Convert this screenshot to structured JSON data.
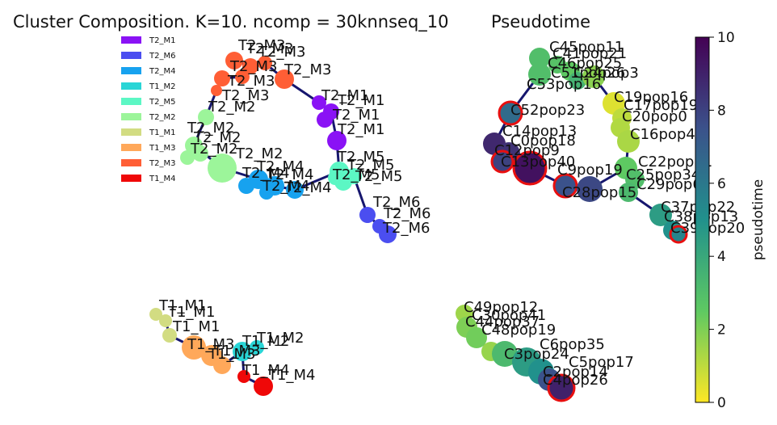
{
  "title_left": "Cluster Composition. K=10. ncomp = 30knnseq_10",
  "title_right": "Pseudotime",
  "legend": [
    {
      "label": "T2_M1",
      "color": "#8a12f5"
    },
    {
      "label": "T2_M6",
      "color": "#4b4ef0"
    },
    {
      "label": "T2_M4",
      "color": "#17a2ef"
    },
    {
      "label": "T1_M2",
      "color": "#29d5d6"
    },
    {
      "label": "T2_M5",
      "color": "#5cf7c4"
    },
    {
      "label": "T2_M2",
      "color": "#9cf59a"
    },
    {
      "label": "T1_M1",
      "color": "#d2dc82"
    },
    {
      "label": "T1_M3",
      "color": "#ffa85a"
    },
    {
      "label": "T2_M3",
      "color": "#ff5e35"
    },
    {
      "label": "T1_M4",
      "color": "#ef0808"
    }
  ],
  "colorbar": {
    "label": "pseudotime",
    "ticks": [
      "0",
      "2",
      "4",
      "6",
      "8",
      "10"
    ],
    "min": 0,
    "max": 10
  },
  "chart_data": [
    {
      "type": "scatter",
      "title": "Cluster Composition. K=10. ncomp = 30knnseq_10",
      "description_of_points": "pie-chart nodes; each node label = dominant group",
      "points": [
        {
          "label": "T2_M3",
          "group": "T2_M3"
        },
        {
          "label": "T2_M3",
          "group": "T2_M3"
        },
        {
          "label": "T2_M3",
          "group": "T2_M3"
        },
        {
          "label": "T2_M3",
          "group": "T2_M3"
        },
        {
          "label": "T2_M3",
          "group": "T2_M3"
        },
        {
          "label": "T2_M3",
          "group": "T2_M3"
        },
        {
          "label": "T2_M3",
          "group": "T2_M3"
        },
        {
          "label": "T2_M2",
          "group": "T2_M2"
        },
        {
          "label": "T2_M2",
          "group": "T2_M2"
        },
        {
          "label": "T2_M2",
          "group": "T2_M2"
        },
        {
          "label": "T2_M2",
          "group": "T2_M2"
        },
        {
          "label": "T2_M2",
          "group": "T2_M2"
        },
        {
          "label": "T2_M4",
          "group": "T2_M4"
        },
        {
          "label": "T2_M4",
          "group": "T2_M4"
        },
        {
          "label": "T2_M4",
          "group": "T2_M4"
        },
        {
          "label": "T2_M4",
          "group": "T2_M4"
        },
        {
          "label": "T2_M4",
          "group": "T2_M4"
        },
        {
          "label": "T2_M1",
          "group": "T2_M1"
        },
        {
          "label": "T2_M1",
          "group": "T2_M1"
        },
        {
          "label": "T2_M1",
          "group": "T2_M1"
        },
        {
          "label": "T2_M1",
          "group": "T2_M1"
        },
        {
          "label": "T2_M5",
          "group": "T2_M5"
        },
        {
          "label": "T2_M5",
          "group": "T2_M5"
        },
        {
          "label": "T2_M5",
          "group": "T2_M5"
        },
        {
          "label": "T2_M5",
          "group": "T2_M5"
        },
        {
          "label": "T2_M6",
          "group": "T2_M6"
        },
        {
          "label": "T2_M6",
          "group": "T2_M6"
        },
        {
          "label": "T2_M6",
          "group": "T2_M6"
        },
        {
          "label": "T1_M1",
          "group": "T1_M1"
        },
        {
          "label": "T1_M1",
          "group": "T1_M1"
        },
        {
          "label": "T1_M1",
          "group": "T1_M1"
        },
        {
          "label": "T1_M3",
          "group": "T1_M3"
        },
        {
          "label": "T1_M3",
          "group": "T1_M3"
        },
        {
          "label": "T1_M3",
          "group": "T1_M3"
        },
        {
          "label": "T1_M2",
          "group": "T1_M2"
        },
        {
          "label": "T1_M2",
          "group": "T1_M2"
        },
        {
          "label": "T1_M4",
          "group": "T1_M4"
        },
        {
          "label": "T1_M4",
          "group": "T1_M4"
        }
      ]
    },
    {
      "type": "scatter",
      "title": "Pseudotime",
      "colorbar_label": "pseudotime",
      "clim": [
        0,
        10
      ],
      "points": [
        {
          "label": "C45pop11",
          "pseudotime": 3.0
        },
        {
          "label": "C41pop21",
          "pseudotime": 2.8
        },
        {
          "label": "C46pop25",
          "pseudotime": 2.5
        },
        {
          "label": "C51pop26",
          "pseudotime": 3.0
        },
        {
          "label": "C53pop16",
          "pseudotime": 3.5
        },
        {
          "label": "C24pop3",
          "pseudotime": 1.8
        },
        {
          "label": "C52pop23",
          "pseudotime": 6.5
        },
        {
          "label": "C19pop16",
          "pseudotime": 0.5
        },
        {
          "label": "C17pop19",
          "pseudotime": 1.0
        },
        {
          "label": "C20pop0",
          "pseudotime": 1.2
        },
        {
          "label": "C16pop4",
          "pseudotime": 1.3
        },
        {
          "label": "C14pop13",
          "pseudotime": 8.8
        },
        {
          "label": "C0pop18",
          "pseudotime": 8.5
        },
        {
          "label": "C12pop9",
          "pseudotime": 8.0
        },
        {
          "label": "C13pop40",
          "pseudotime": 9.5
        },
        {
          "label": "C9pop19",
          "pseudotime": 7.5
        },
        {
          "label": "C28pop15",
          "pseudotime": 7.8
        },
        {
          "label": "C22pop31",
          "pseudotime": 2.5
        },
        {
          "label": "C25pop34",
          "pseudotime": 3.0
        },
        {
          "label": "C29pop6",
          "pseudotime": 3.2
        },
        {
          "label": "C37pop22",
          "pseudotime": 4.5
        },
        {
          "label": "C38pop13",
          "pseudotime": 5.0
        },
        {
          "label": "C39pop20",
          "pseudotime": 5.5
        },
        {
          "label": "C49pop12",
          "pseudotime": 1.5
        },
        {
          "label": "C30pop41",
          "pseudotime": 2.0
        },
        {
          "label": "C44pop37",
          "pseudotime": 2.2
        },
        {
          "label": "C48pop19",
          "pseudotime": 1.6
        },
        {
          "label": "C6pop35",
          "pseudotime": 3.2
        },
        {
          "label": "C3pop24",
          "pseudotime": 4.5
        },
        {
          "label": "C5pop17",
          "pseudotime": 5.0
        },
        {
          "label": "C2pop14",
          "pseudotime": 7.5
        },
        {
          "label": "C4pop26",
          "pseudotime": 9.0
        }
      ]
    }
  ],
  "left_labels": [
    "T2_M3",
    "T2_M3",
    "T2_M3",
    "T2_M3",
    "T2_M3",
    "T2_M3",
    "T2_M3",
    "T2_M2",
    "T2_M2",
    "T2_M2",
    "T2_M2",
    "T2_M2",
    "T2_M4",
    "T2_M4",
    "T2_M4",
    "T2_M4",
    "T2_M4",
    "T2_M1",
    "T2_M1",
    "T2_M1",
    "T2_M1",
    "T2_M5",
    "T2_M5",
    "T2_M5",
    "T2_M5",
    "T2_M6",
    "T2_M6",
    "T2_M6",
    "T1_M1",
    "T1_M1",
    "T1_M1",
    "T1_M3",
    "T1_M3",
    "T1_M3",
    "T1_M2",
    "T1_M2",
    "T1_M4",
    "T1_M4"
  ],
  "right_labels": [
    "C45pop11",
    "C41pop21",
    "C46pop25",
    "C51pop26",
    "C53pop16",
    "C24pop3",
    "C52pop23",
    "C19pop16",
    "C17pop19",
    "C20pop0",
    "C16pop4",
    "C14pop13",
    "C0pop18",
    "C12pop9",
    "C13pop40",
    "C9pop19",
    "C28pop15",
    "C22pop31",
    "C25pop34",
    "C29pop6",
    "C37pop22",
    "C38pop13",
    "C39pop20",
    "C49pop12",
    "C30pop41",
    "C44pop37",
    "C48pop19",
    "C6pop35",
    "C3pop24",
    "C5pop17",
    "C2pop14",
    "C4pop26"
  ]
}
